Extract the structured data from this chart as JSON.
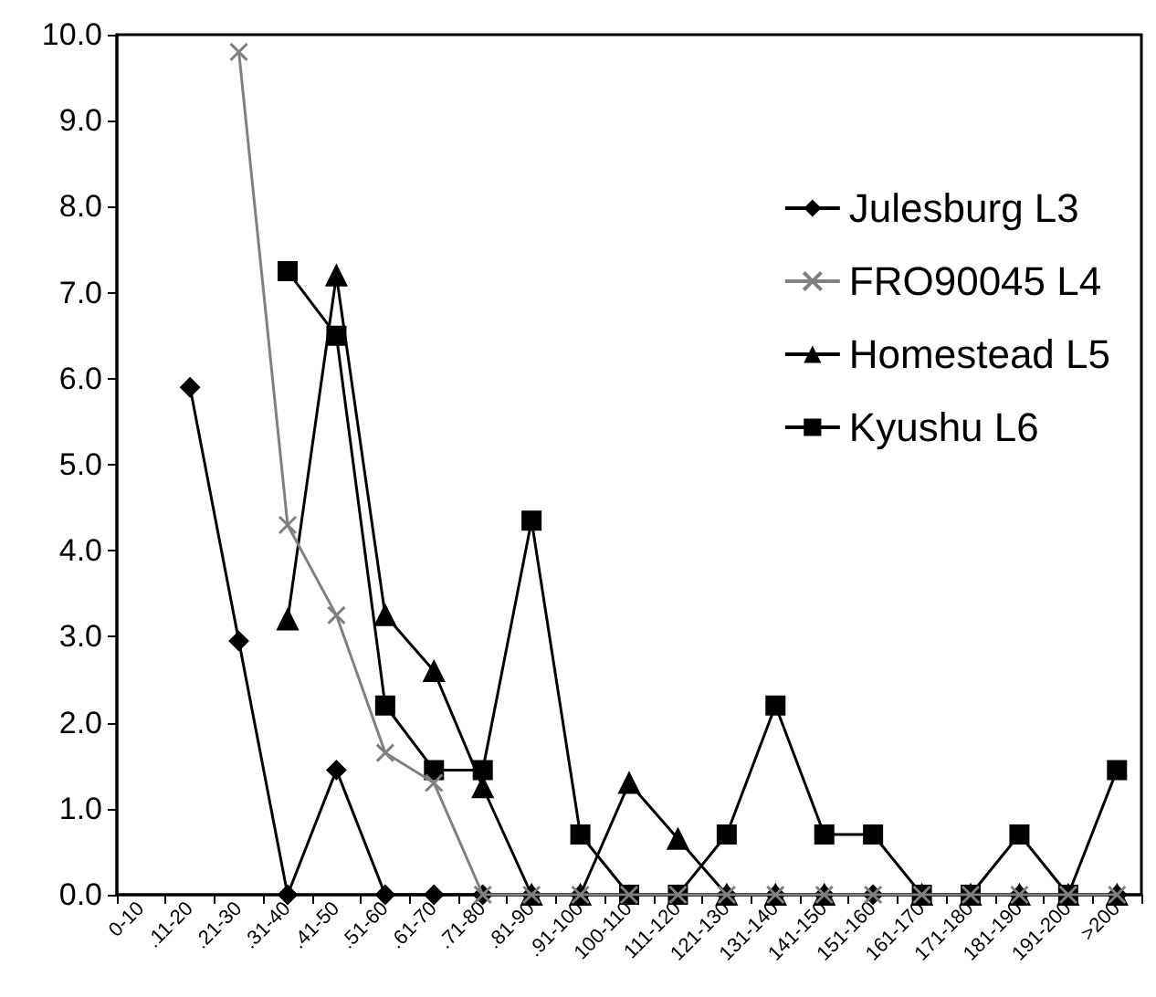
{
  "chart_data": {
    "type": "line",
    "categories": [
      "0-10",
      ".11-20",
      ".21-30",
      ".31-40",
      ".41-50",
      ".51-60",
      ".61-70",
      ".71-80",
      ".81-90",
      ".91-100",
      "100-110",
      "111-120",
      "121-130",
      "131-140",
      "141-150",
      "151-160",
      "161-170",
      "171-180",
      "181-190",
      "191-200",
      ">200"
    ],
    "series": [
      {
        "name": "Julesburg L3",
        "color": "#000000",
        "marker": "diamond",
        "values": [
          null,
          5.9,
          2.95,
          0,
          1.45,
          0,
          0,
          0,
          0,
          0,
          0,
          0,
          0,
          0,
          0,
          0,
          0,
          0,
          0,
          0,
          0
        ]
      },
      {
        "name": "FRO90045 L4",
        "color": "#808080",
        "marker": "cross",
        "values": [
          null,
          null,
          9.8,
          4.3,
          3.25,
          1.65,
          1.3,
          0,
          0,
          0,
          0,
          0,
          0,
          0,
          0,
          0,
          0,
          0,
          0,
          0,
          0
        ]
      },
      {
        "name": "Homestead L5",
        "color": "#000000",
        "marker": "triangle",
        "values": [
          null,
          null,
          null,
          3.2,
          7.2,
          3.25,
          2.6,
          1.25,
          0,
          0,
          1.3,
          0.65,
          0,
          0,
          0,
          null,
          0,
          0,
          0,
          0,
          0
        ]
      },
      {
        "name": "Kyushu L6",
        "color": "#000000",
        "marker": "square",
        "values": [
          null,
          null,
          null,
          7.25,
          6.5,
          2.2,
          1.45,
          1.45,
          4.35,
          0.7,
          0,
          0,
          0.7,
          2.2,
          0.7,
          0.7,
          0,
          0,
          0.7,
          0,
          1.45
        ]
      }
    ],
    "ylim": [
      0,
      10
    ],
    "yticks": [
      {
        "value": 0,
        "label": "0.0"
      },
      {
        "value": 1,
        "label": "1.0"
      },
      {
        "value": 2,
        "label": "2.0"
      },
      {
        "value": 3,
        "label": "3.0"
      },
      {
        "value": 4,
        "label": "4.0"
      },
      {
        "value": 5,
        "label": "5.0"
      },
      {
        "value": 6,
        "label": "6.0"
      },
      {
        "value": 7,
        "label": "7.0"
      },
      {
        "value": 8,
        "label": "8.0"
      },
      {
        "value": 9,
        "label": "9.0"
      },
      {
        "value": 10,
        "label": "10.0"
      }
    ],
    "grid": false,
    "legend": "right"
  }
}
